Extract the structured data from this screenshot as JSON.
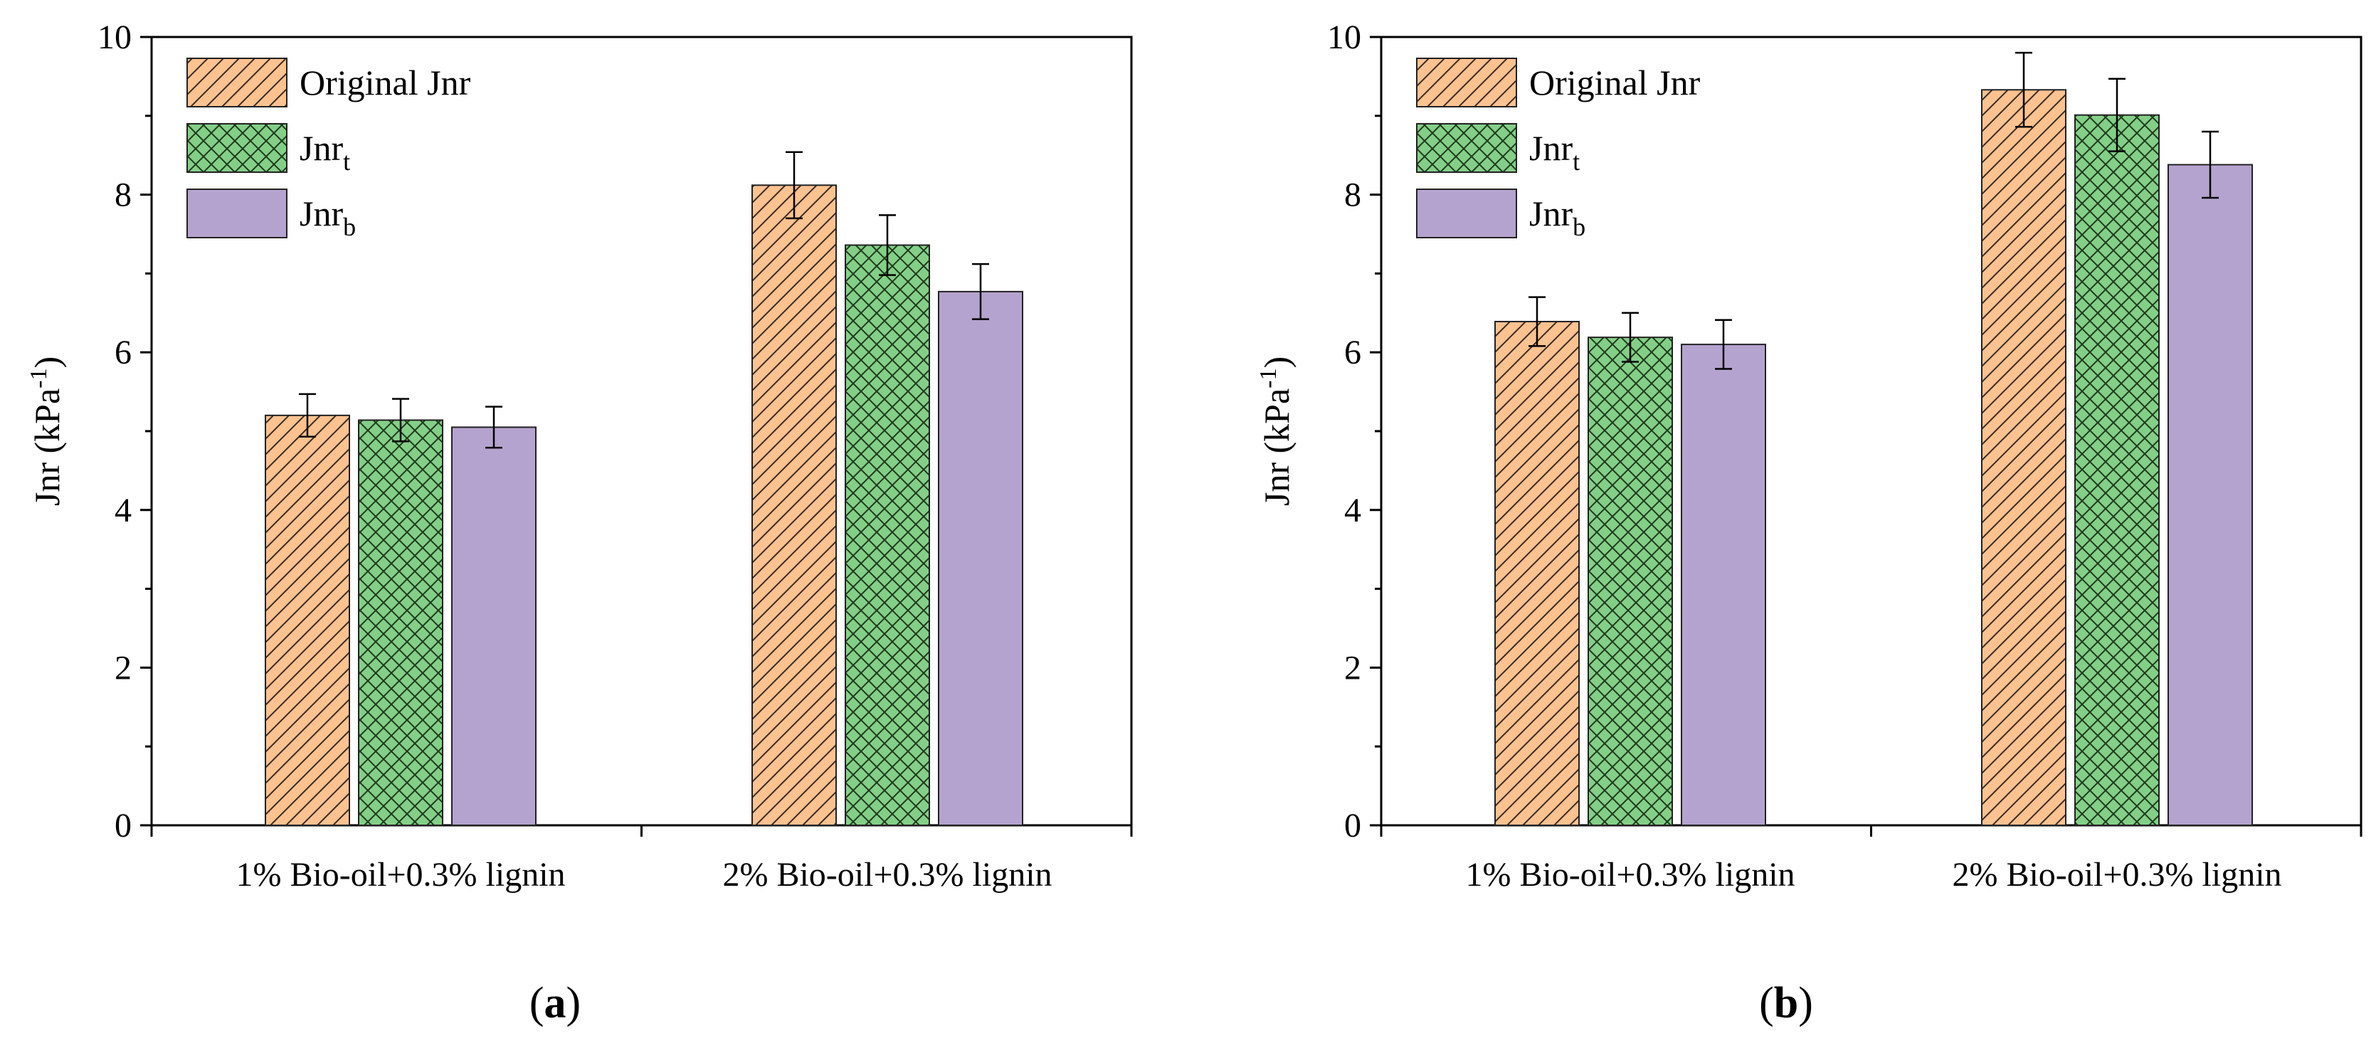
{
  "chart_data": [
    {
      "type": "bar",
      "panel_label": "(a)",
      "categories": [
        "1% Bio-oil+0.3% lignin",
        "2% Bio-oil+0.3% lignin"
      ],
      "series": [
        {
          "name": "Original Jnr",
          "label_main": "Original Jnr",
          "label_sub": "",
          "values": [
            5.2,
            8.12
          ],
          "errors": [
            0.27,
            0.42
          ],
          "color": "#fcc290",
          "pattern": "diagonal"
        },
        {
          "name": "Jnr_t",
          "label_main": "Jnr",
          "label_sub": "t",
          "values": [
            5.14,
            7.36
          ],
          "errors": [
            0.27,
            0.38
          ],
          "color": "#84cf87",
          "pattern": "crosshatch"
        },
        {
          "name": "Jnr_b",
          "label_main": "Jnr",
          "label_sub": "b",
          "values": [
            5.05,
            6.77
          ],
          "errors": [
            0.26,
            0.35
          ],
          "color": "#b5a3cf",
          "pattern": "solid"
        }
      ],
      "ylabel": "Jnr (kPa",
      "ylabel_sup": "-1",
      "ylabel_close": ")",
      "xlabel": "",
      "ylim": [
        0,
        10
      ],
      "yticks": [
        "0",
        "2",
        "4",
        "6",
        "8",
        "10"
      ],
      "legend": "top-left"
    },
    {
      "type": "bar",
      "panel_label": "(b)",
      "categories": [
        "1% Bio-oil+0.3% lignin",
        "2% Bio-oil+0.3% lignin"
      ],
      "series": [
        {
          "name": "Original Jnr",
          "label_main": "Original Jnr",
          "label_sub": "",
          "values": [
            6.39,
            9.33
          ],
          "errors": [
            0.31,
            0.47
          ],
          "color": "#fcc290",
          "pattern": "diagonal"
        },
        {
          "name": "Jnr_t",
          "label_main": "Jnr",
          "label_sub": "t",
          "values": [
            6.19,
            9.01
          ],
          "errors": [
            0.31,
            0.46
          ],
          "color": "#84cf87",
          "pattern": "crosshatch"
        },
        {
          "name": "Jnr_b",
          "label_main": "Jnr",
          "label_sub": "b",
          "values": [
            6.1,
            8.38
          ],
          "errors": [
            0.31,
            0.42
          ],
          "color": "#b5a3cf",
          "pattern": "solid"
        }
      ],
      "ylabel": "Jnr (kPa",
      "ylabel_sup": "-1",
      "ylabel_close": ")",
      "xlabel": "",
      "ylim": [
        0,
        10
      ],
      "yticks": [
        "0",
        "2",
        "4",
        "6",
        "8",
        "10"
      ],
      "legend": "top-left"
    }
  ]
}
